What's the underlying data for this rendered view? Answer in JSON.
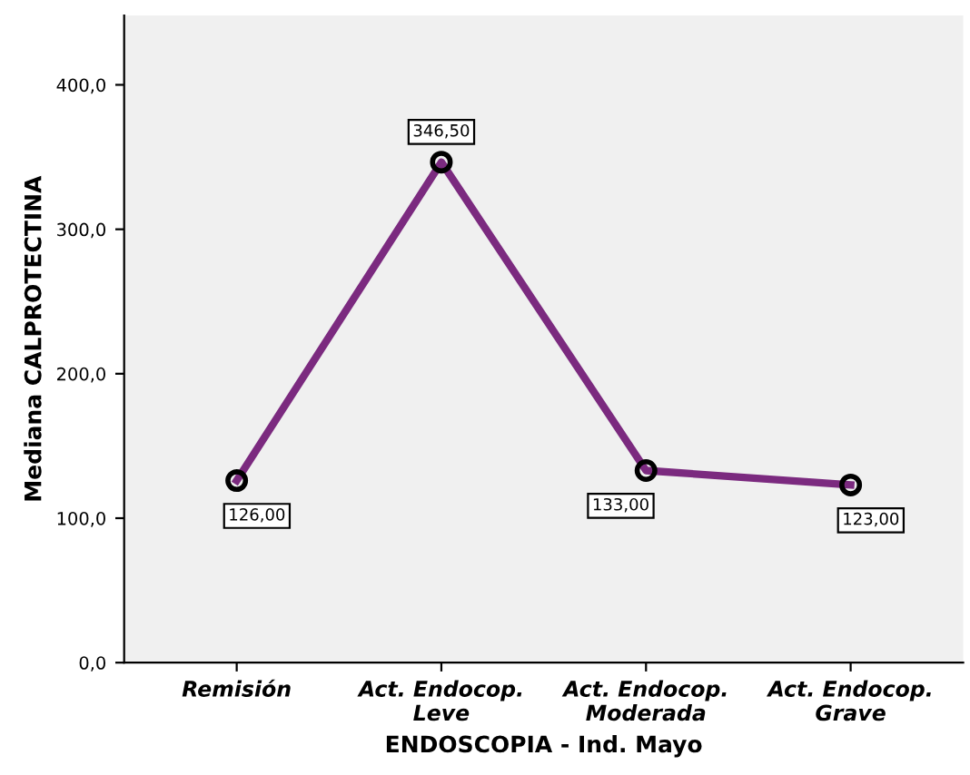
{
  "chart_data": {
    "type": "line",
    "xlabel": "ENDOSCOPIA - Ind. Mayo",
    "ylabel": "Mediana CALPROTECTINA",
    "categories": [
      "Remisión",
      "Act. Endocop.\nLeve",
      "Act. Endocop.\nModerada",
      "Act. Endocop.\nGrave"
    ],
    "series": [
      {
        "color": "#7b2a7f",
        "values": [
          126.0,
          346.5,
          133.0,
          123.0
        ],
        "value_labels": [
          "126,00",
          "346,50",
          "133,00",
          "123,00"
        ]
      }
    ],
    "ylim": [
      0,
      448
    ],
    "yticks": [
      {
        "value": 0,
        "label": "0,0"
      },
      {
        "value": 100,
        "label": "100,0"
      },
      {
        "value": 200,
        "label": "200,0"
      },
      {
        "value": 300,
        "label": "300,0"
      },
      {
        "value": 400,
        "label": "400,0"
      }
    ],
    "marker": "circle",
    "line_style": "solid",
    "grid": false,
    "legend": false
  }
}
